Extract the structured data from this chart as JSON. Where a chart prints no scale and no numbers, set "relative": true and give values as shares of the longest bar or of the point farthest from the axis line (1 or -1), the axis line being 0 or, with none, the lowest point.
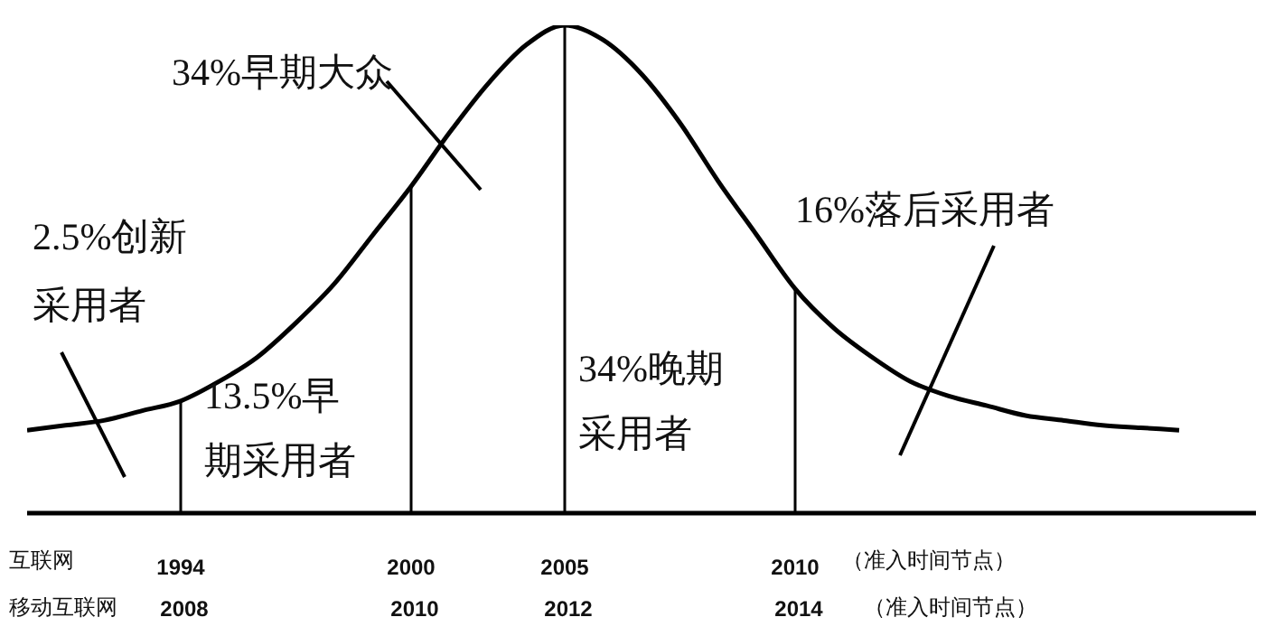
{
  "chart_data": {
    "type": "line",
    "relative": true,
    "marker": "none",
    "grid": false,
    "legend": false,
    "categories": [
      null,
      null,
      null,
      null,
      "1994",
      null,
      null,
      null,
      null,
      null,
      "2000",
      null,
      null,
      null,
      "2005",
      null,
      null,
      null,
      null,
      null,
      "2010",
      null,
      null,
      null,
      null,
      null,
      null,
      null,
      null,
      null,
      null,
      null,
      null
    ],
    "series": [
      {
        "color": "#000000",
        "values": [
          0.17,
          0.18,
          0.19,
          0.21,
          0.23,
          0.27,
          0.32,
          0.39,
          0.47,
          0.57,
          0.67,
          0.78,
          0.88,
          0.96,
          1,
          0.97,
          0.9,
          0.8,
          0.68,
          0.57,
          0.46,
          0.38,
          0.32,
          0.27,
          0.24,
          0.22,
          0.2,
          0.19,
          0.18,
          0.175,
          0.17,
          null,
          null
        ]
      }
    ],
    "ref_lines": [
      {
        "axis": "x",
        "value": "1994",
        "color": "#000000"
      },
      {
        "axis": "x",
        "value": "2000",
        "color": "#000000"
      },
      {
        "axis": "x",
        "value": "2005",
        "color": "#000000"
      },
      {
        "axis": "x",
        "value": "2010",
        "color": "#000000"
      }
    ],
    "annotations": [
      "34%早期大众",
      "2.5%创新采用者",
      "13.5%早期采用者",
      "34%晚期采用者",
      "16%落后采用者",
      "互联网",
      "移动互联网",
      "（准入时间节点）",
      "（准入时间节点）",
      "2008",
      "2010",
      "2012",
      "2014"
    ]
  }
}
